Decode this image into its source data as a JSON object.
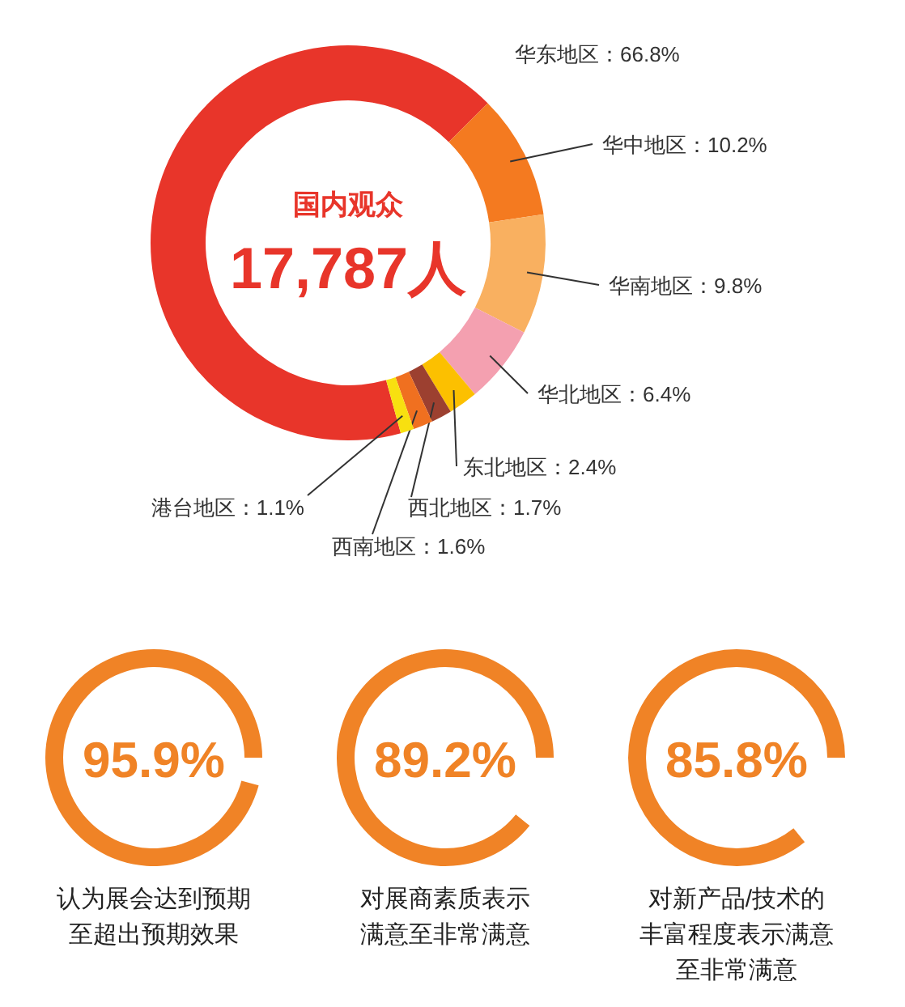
{
  "chart_data": [
    {
      "type": "donut",
      "title": "国内观众",
      "annotations": [
        "17,787人"
      ],
      "categories": [
        "华东地区",
        "华中地区",
        "华南地区",
        "华北地区",
        "东北地区",
        "西北地区",
        "西南地区",
        "港台地区"
      ],
      "values": [
        66.8,
        10.2,
        9.8,
        6.4,
        2.4,
        1.7,
        1.6,
        1.1
      ],
      "value_labels": [
        "66.8%",
        "10.2%",
        "9.8%",
        "6.4%",
        "2.4%",
        "1.7%",
        "1.6%",
        "1.1%"
      ],
      "colors": [
        "#e8352a",
        "#f47a20",
        "#f9b060",
        "#f4a0b0",
        "#fcc000",
        "#9c4030",
        "#f07020",
        "#f8e010"
      ]
    },
    {
      "type": "pie",
      "categories": [
        "认为展会达到预期至超出预期效果"
      ],
      "values": [
        95.9
      ],
      "value_labels": [
        "95.9%"
      ],
      "colors": [
        "#f08326"
      ]
    },
    {
      "type": "pie",
      "categories": [
        "对展商素质表示满意至非常满意"
      ],
      "values": [
        89.2
      ],
      "value_labels": [
        "89.2%"
      ],
      "colors": [
        "#f08326"
      ]
    },
    {
      "type": "pie",
      "categories": [
        "对新产品/技术的丰富程度表示满意至非常满意"
      ],
      "values": [
        85.8
      ],
      "value_labels": [
        "85.8%"
      ],
      "colors": [
        "#f08326"
      ]
    }
  ]
}
